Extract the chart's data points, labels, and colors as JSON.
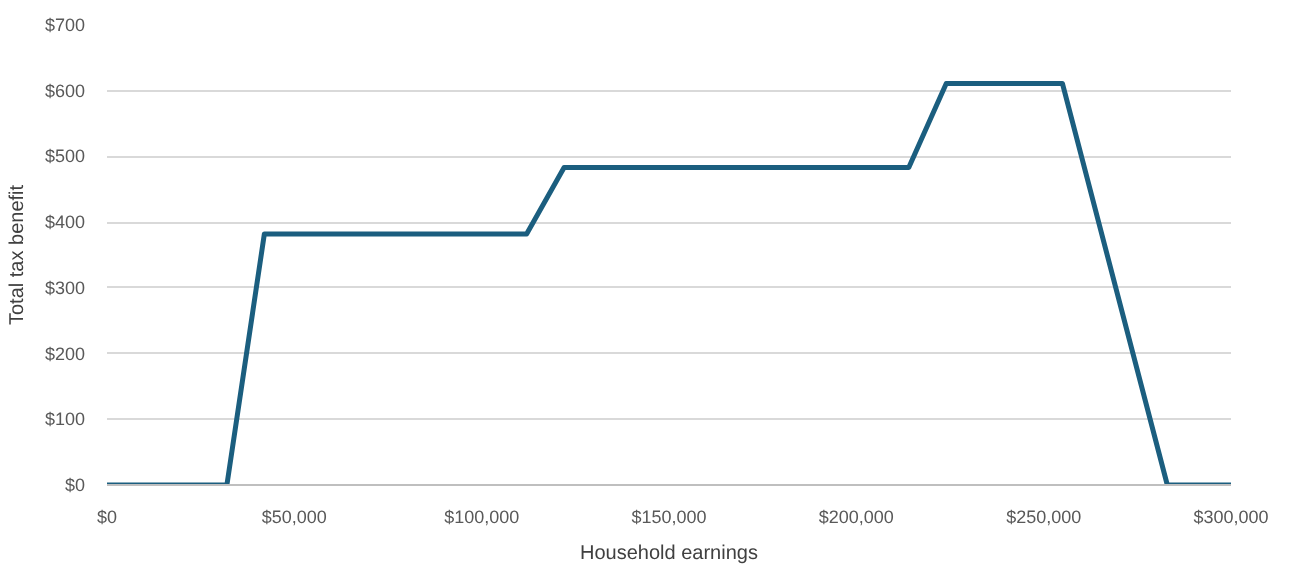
{
  "chart_data": {
    "type": "line",
    "xlabel": "Household earnings",
    "ylabel": "Total tax benefit",
    "x": [
      0,
      32000,
      42000,
      112000,
      122000,
      214000,
      224000,
      255000,
      283000,
      300000
    ],
    "series": [
      {
        "color": "#1b5e7f",
        "values": [
          0,
          0,
          382,
          382,
          483,
          483,
          611,
          611,
          0,
          0
        ]
      }
    ],
    "xlim": [
      0,
      300000
    ],
    "xticks": [
      {
        "value": 0,
        "label": "$0"
      },
      {
        "value": 50000,
        "label": "$50,000"
      },
      {
        "value": 100000,
        "label": "$100,000"
      },
      {
        "value": 150000,
        "label": "$150,000"
      },
      {
        "value": 200000,
        "label": "$200,000"
      },
      {
        "value": 250000,
        "label": "$250,000"
      },
      {
        "value": 300000,
        "label": "$300,000"
      }
    ],
    "ylim": [
      0,
      700
    ],
    "yticks": [
      {
        "value": 0,
        "label": "$0"
      },
      {
        "value": 100,
        "label": "$100"
      },
      {
        "value": 200,
        "label": "$200"
      },
      {
        "value": 300,
        "label": "$300"
      },
      {
        "value": 400,
        "label": "$400"
      },
      {
        "value": 500,
        "label": "$500"
      },
      {
        "value": 600,
        "label": "$600"
      },
      {
        "value": 700,
        "label": "$700"
      }
    ],
    "grid": "y",
    "marker": "none",
    "line_style": "solid"
  }
}
